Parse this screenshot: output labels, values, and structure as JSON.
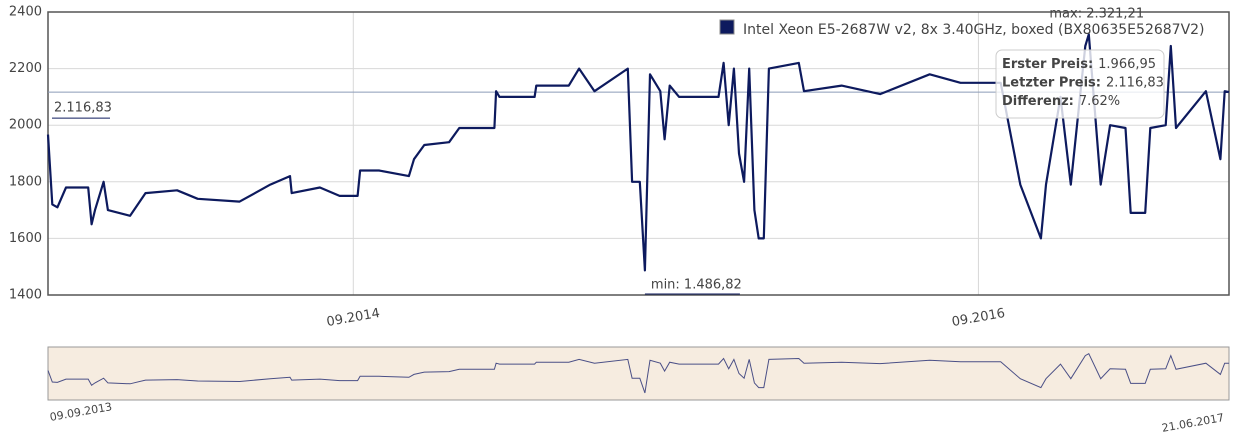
{
  "chart_data": {
    "type": "line",
    "x": [
      "09.09.2013",
      "14.09.2013",
      "20.09.2013",
      "30.09.2013",
      "26.10.2013",
      "30.10.2013",
      "03.11.2013",
      "13.11.2013",
      "18.11.2013",
      "14.12.2013",
      "01.01.2014",
      "07.02.2014",
      "03.03.2014",
      "21.04.2014",
      "27.05.2014",
      "19.06.2014",
      "21.06.2014",
      "24.07.2014",
      "16.08.2014",
      "06.09.2014",
      "09.09.2014",
      "01.10.2014",
      "05.11.2014",
      "11.11.2014",
      "23.11.2014",
      "22.12.2014",
      "03.01.2015",
      "13.02.2015",
      "15.02.2015",
      "19.02.2015",
      "01.04.2015",
      "03.04.2015",
      "11.05.2015",
      "23.05.2015",
      "10.06.2015",
      "19.07.2015",
      "24.07.2015",
      "02.08.2015",
      "08.08.2015",
      "14.08.2015",
      "26.08.2015",
      "31.08.2015",
      "06.09.2015",
      "17.09.2015",
      "02.11.2015",
      "08.11.2015",
      "14.11.2015",
      "20.11.2015",
      "26.11.2015",
      "02.12.2015",
      "08.12.2015",
      "14.12.2015",
      "19.12.2015",
      "25.12.2015",
      "31.12.2015",
      "04.02.2016",
      "10.02.2016",
      "25.03.2016",
      "09.05.2016",
      "06.07.2016",
      "11.08.2016",
      "27.09.2016",
      "20.10.2016",
      "13.11.2016",
      "19.11.2016",
      "06.12.2016",
      "18.12.2016",
      "04.01.2017",
      "08.01.2017",
      "22.01.2017",
      "02.02.2017",
      "20.02.2017",
      "26.02.2017",
      "15.03.2017",
      "21.03.2017",
      "08.04.2017",
      "14.04.2017",
      "20.04.2017",
      "25.05.2017",
      "11.06.2017",
      "16.06.2017",
      "21.06.2017"
    ],
    "series": [
      {
        "name": "Intel Xeon E5-2687W v2, 8x 3.40GHz, boxed (BX80635E52687V2)",
        "color": "#0d1a5e",
        "values": [
          1966.95,
          1720,
          1710,
          1780,
          1780,
          1650,
          1700,
          1800,
          1700,
          1680,
          1760,
          1770,
          1740,
          1730,
          1790,
          1820,
          1760,
          1780,
          1750,
          1750,
          1840,
          1840,
          1820,
          1880,
          1930,
          1940,
          1990,
          1990,
          2120,
          2100,
          2100,
          2140,
          2140,
          2200,
          2120,
          2200,
          1800,
          1800,
          1486.82,
          2180,
          2120,
          1950,
          2140,
          2100,
          2100,
          2220,
          2000,
          2200,
          1900,
          1800,
          2200,
          1700,
          1600,
          1600,
          2200,
          2220,
          2120,
          2140,
          2110,
          2180,
          2150,
          2150,
          1790,
          1600,
          1790,
          2100,
          1790,
          2280,
          2321.21,
          1790,
          2000,
          1990,
          1690,
          1690,
          1990,
          2000,
          2280,
          1990,
          2120,
          1880,
          2120,
          2116.83
        ]
      }
    ],
    "xlim": [
      "09.09.2013",
      "21.06.2017"
    ],
    "xticks": [
      "09.2014",
      "09.2016"
    ],
    "ylim": [
      1400,
      2400
    ],
    "yticks": [
      1400,
      1600,
      1800,
      2000,
      2200,
      2400
    ],
    "grid": true,
    "reference_line": {
      "value": 2116.83,
      "label": "2.116,83"
    },
    "annotations": {
      "min": "min: 1.486,82",
      "max": "max: 2.321,21"
    },
    "tooltip": [
      {
        "label": "Erster Preis:",
        "value": "1.966,95"
      },
      {
        "label": "Letzter Preis:",
        "value": "2.116,83"
      },
      {
        "label": "Differenz:",
        "value": "7.62%"
      }
    ]
  }
}
